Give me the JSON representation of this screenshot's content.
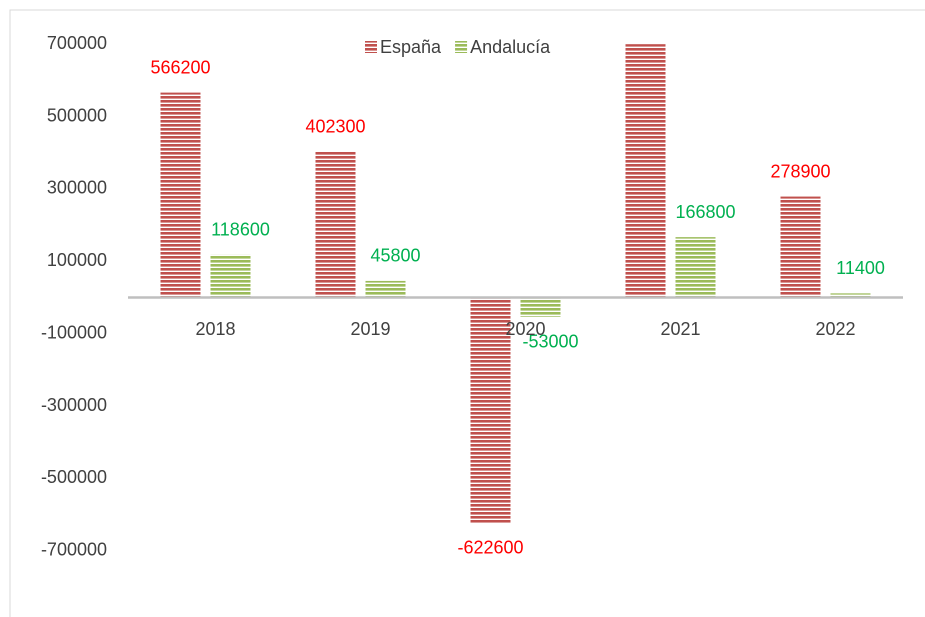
{
  "chart_data": {
    "type": "bar",
    "categories": [
      "2018",
      "2019",
      "2020",
      "2021",
      "2022"
    ],
    "series": [
      {
        "name": "España",
        "color": "#c0504d",
        "label_color": "#ff0000",
        "values": [
          566200,
          402300,
          -622600,
          700000,
          278900
        ]
      },
      {
        "name": "Andalucía",
        "color": "#9bbb59",
        "label_color": "#00b050",
        "values": [
          118600,
          45800,
          -53000,
          166800,
          11400
        ]
      }
    ],
    "ylim": [
      -800000,
      800000
    ],
    "yticks": [
      -700000,
      -500000,
      -300000,
      -100000,
      100000,
      300000,
      500000,
      700000
    ],
    "legend": "top"
  }
}
